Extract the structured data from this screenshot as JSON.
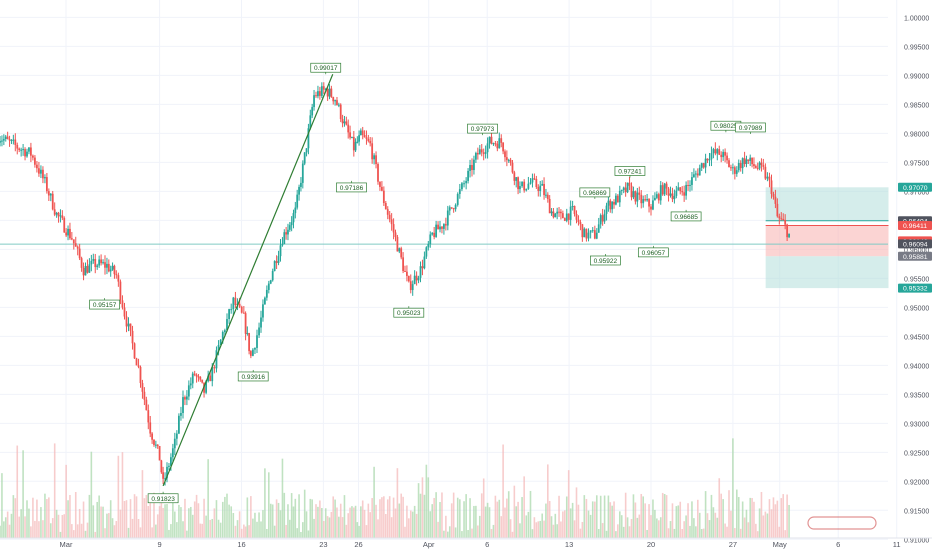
{
  "chart_data": {
    "type": "candlestick",
    "timeframe": "4h",
    "y_axis": {
      "side": "right",
      "range": [
        0.9085,
        1.003
      ],
      "ticks": [
        "1.00000",
        "0.99500",
        "0.99000",
        "0.98500",
        "0.98000",
        "0.97500",
        "0.97000",
        "0.96500",
        "0.96000",
        "0.95500",
        "0.95000",
        "0.94500",
        "0.94000",
        "0.93500",
        "0.93000",
        "0.92500",
        "0.92000",
        "0.91500",
        "0.91000"
      ]
    },
    "x_axis": {
      "ticks": [
        {
          "label": "Mar",
          "day": 0
        },
        {
          "label": "9",
          "day": 8
        },
        {
          "label": "16",
          "day": 15
        },
        {
          "label": "23",
          "day": 22
        },
        {
          "label": "26",
          "day": 25
        },
        {
          "label": "Apr",
          "day": 31
        },
        {
          "label": "6",
          "day": 36
        },
        {
          "label": "13",
          "day": 43
        },
        {
          "label": "20",
          "day": 50
        },
        {
          "label": "27",
          "day": 57
        },
        {
          "label": "May",
          "day": 61
        },
        {
          "label": "6",
          "day": 66
        },
        {
          "label": "11",
          "day": 71
        }
      ]
    },
    "price_path": [
      {
        "day": -5.8,
        "price": 0.9795
      },
      {
        "day": -4.5,
        "price": 0.978
      },
      {
        "day": -3,
        "price": 0.9765
      },
      {
        "day": -1.8,
        "price": 0.9715
      },
      {
        "day": -0.8,
        "price": 0.966
      },
      {
        "day": 0.5,
        "price": 0.962
      },
      {
        "day": 1.5,
        "price": 0.9565
      },
      {
        "day": 2.5,
        "price": 0.9575
      },
      {
        "day": 3.5,
        "price": 0.9572
      },
      {
        "day": 4.3,
        "price": 0.9555
      },
      {
        "day": 5,
        "price": 0.949
      },
      {
        "day": 6.2,
        "price": 0.9395
      },
      {
        "day": 7.2,
        "price": 0.929
      },
      {
        "day": 8,
        "price": 0.924
      },
      {
        "day": 8.3,
        "price": 0.9195
      },
      {
        "day": 9.3,
        "price": 0.9265
      },
      {
        "day": 10,
        "price": 0.934
      },
      {
        "day": 11,
        "price": 0.9385
      },
      {
        "day": 11.8,
        "price": 0.9355
      },
      {
        "day": 12.5,
        "price": 0.939
      },
      {
        "day": 13.4,
        "price": 0.9455
      },
      {
        "day": 14.3,
        "price": 0.951
      },
      {
        "day": 15.2,
        "price": 0.948
      },
      {
        "day": 15.8,
        "price": 0.9415
      },
      {
        "day": 16.5,
        "price": 0.9465
      },
      {
        "day": 17.5,
        "price": 0.9555
      },
      {
        "day": 18.5,
        "price": 0.962
      },
      {
        "day": 19.6,
        "price": 0.9665
      },
      {
        "day": 20.4,
        "price": 0.976
      },
      {
        "day": 21.2,
        "price": 0.9865
      },
      {
        "day": 22.2,
        "price": 0.9875
      },
      {
        "day": 23,
        "price": 0.986
      },
      {
        "day": 23.8,
        "price": 0.9815
      },
      {
        "day": 24.6,
        "price": 0.9775
      },
      {
        "day": 25.2,
        "price": 0.9795
      },
      {
        "day": 26,
        "price": 0.978
      },
      {
        "day": 27,
        "price": 0.9695
      },
      {
        "day": 28,
        "price": 0.963
      },
      {
        "day": 29.3,
        "price": 0.9535
      },
      {
        "day": 30.3,
        "price": 0.9565
      },
      {
        "day": 31.3,
        "price": 0.9625
      },
      {
        "day": 32.3,
        "price": 0.9645
      },
      {
        "day": 33.3,
        "price": 0.9685
      },
      {
        "day": 34.2,
        "price": 0.972
      },
      {
        "day": 35.2,
        "price": 0.9765
      },
      {
        "day": 36.2,
        "price": 0.9785
      },
      {
        "day": 37.2,
        "price": 0.9785
      },
      {
        "day": 38,
        "price": 0.9745
      },
      {
        "day": 38.8,
        "price": 0.9705
      },
      {
        "day": 39.7,
        "price": 0.9715
      },
      {
        "day": 40.7,
        "price": 0.9705
      },
      {
        "day": 41.5,
        "price": 0.9665
      },
      {
        "day": 42.3,
        "price": 0.9655
      },
      {
        "day": 43.3,
        "price": 0.9665
      },
      {
        "day": 44.3,
        "price": 0.9625
      },
      {
        "day": 45.2,
        "price": 0.9625
      },
      {
        "day": 46.2,
        "price": 0.9675
      },
      {
        "day": 47,
        "price": 0.9685
      },
      {
        "day": 48,
        "price": 0.9705
      },
      {
        "day": 49,
        "price": 0.9685
      },
      {
        "day": 50,
        "price": 0.9675
      },
      {
        "day": 51,
        "price": 0.9705
      },
      {
        "day": 52,
        "price": 0.9695
      },
      {
        "day": 53,
        "price": 0.9705
      },
      {
        "day": 54,
        "price": 0.9735
      },
      {
        "day": 55,
        "price": 0.9765
      },
      {
        "day": 56,
        "price": 0.9765
      },
      {
        "day": 57,
        "price": 0.9735
      },
      {
        "day": 58,
        "price": 0.9755
      },
      {
        "day": 58.8,
        "price": 0.9745
      },
      {
        "day": 59.6,
        "price": 0.9735
      },
      {
        "day": 60.3,
        "price": 0.9705
      },
      {
        "day": 60.8,
        "price": 0.9655
      },
      {
        "day": 61.3,
        "price": 0.9645
      },
      {
        "day": 61.8,
        "price": 0.9625
      }
    ],
    "pivot_labels": [
      {
        "text": "0.99017",
        "day": 22.2,
        "price": 0.9902,
        "position": "above"
      },
      {
        "text": "0.97186",
        "day": 24.4,
        "price": 0.9718,
        "position": "below"
      },
      {
        "text": "0.95157",
        "day": 3.3,
        "price": 0.9516,
        "position": "below"
      },
      {
        "text": "0.91823",
        "day": 8.3,
        "price": 0.9182,
        "position": "below"
      },
      {
        "text": "0.93916",
        "day": 16,
        "price": 0.9392,
        "position": "below"
      },
      {
        "text": "0.95023",
        "day": 29.3,
        "price": 0.9502,
        "position": "below"
      },
      {
        "text": "0.97973",
        "day": 35.6,
        "price": 0.9797,
        "position": "above"
      },
      {
        "text": "0.96869",
        "day": 45.2,
        "price": 0.9687,
        "position": "above"
      },
      {
        "text": "0.95922",
        "day": 46.1,
        "price": 0.9592,
        "position": "below"
      },
      {
        "text": "0.97241",
        "day": 48.2,
        "price": 0.9724,
        "position": "above"
      },
      {
        "text": "0.96057",
        "day": 50.2,
        "price": 0.9606,
        "position": "below"
      },
      {
        "text": "0.96685",
        "day": 53,
        "price": 0.9668,
        "position": "below"
      },
      {
        "text": "0.98025",
        "day": 56.4,
        "price": 0.9802,
        "position": "above"
      },
      {
        "text": "0.97989",
        "day": 58.5,
        "price": 0.9799,
        "position": "above"
      }
    ],
    "trendline": {
      "from": {
        "day": 8.3,
        "price": 0.9192
      },
      "to": {
        "day": 22.8,
        "price": 0.9902
      }
    },
    "horizontal_line": {
      "price": 0.9609
    },
    "position_tool": {
      "day_start": 59.8,
      "day_end": 70.3,
      "entry": 0.9641,
      "entry_high": 0.96494,
      "target_upper": 0.9707,
      "stop_top": 0.96411,
      "stop_bottom": 0.95881,
      "target_lower": 0.95332
    },
    "price_badges": [
      {
        "text": "0.97070",
        "price": 0.9707,
        "color": "#26a69a"
      },
      {
        "text": "0.96494",
        "price": 0.96494,
        "color": "#50535e"
      },
      {
        "text": "0.96411",
        "price": 0.96411,
        "color": "#ef5350"
      },
      {
        "text": "0.96146",
        "price": 0.96146,
        "color": "#ef5350"
      },
      {
        "text": "0.96094",
        "price": 0.96094,
        "color": "#50535e"
      },
      {
        "text": "0.95881",
        "price": 0.95881,
        "color": "#787b86"
      },
      {
        "text": "0.95332",
        "price": 0.95332,
        "color": "#26a69a"
      }
    ],
    "colors": {
      "up": "#26a69a",
      "down": "#ef5350",
      "vol_up": "#a5d6a7",
      "vol_down": "#f4b6b6",
      "trend": "#2e7d32",
      "label_text": "#1b5e20",
      "zone_green": "#b2dfdb",
      "zone_red": "#f8b7b5"
    }
  }
}
